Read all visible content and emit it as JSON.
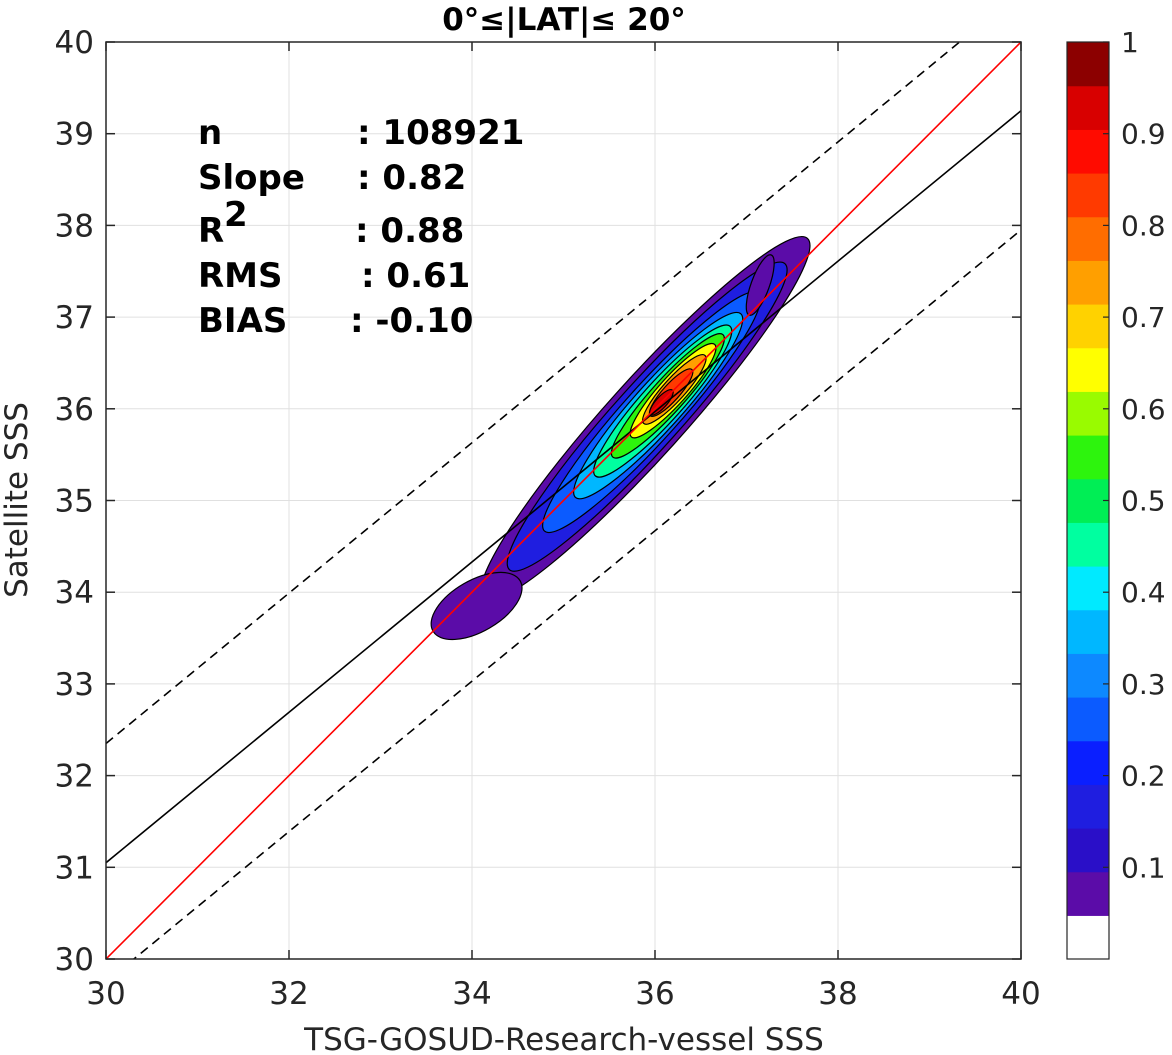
{
  "chart_data": {
    "type": "contour",
    "title": "0°≤|LAT|≤ 20°",
    "xlabel": "TSG-GOSUD-Research-vessel SSS",
    "ylabel": "Satellite SSS",
    "xlim": [
      30,
      40
    ],
    "ylim": [
      30,
      40
    ],
    "xticks": [
      "30",
      "32",
      "34",
      "36",
      "38",
      "40"
    ],
    "yticks": [
      "30",
      "31",
      "32",
      "33",
      "34",
      "35",
      "36",
      "37",
      "38",
      "39",
      "40"
    ],
    "grid": true,
    "stats": [
      {
        "label": "n",
        "value": ": 108921"
      },
      {
        "label": "Slope",
        "value": ": 0.82"
      },
      {
        "label": "R",
        "sup": "2",
        "value": ": 0.88"
      },
      {
        "label": "RMS",
        "value": ": 0.61"
      },
      {
        "label": "BIAS",
        "value": ": -0.10"
      }
    ],
    "lines": {
      "one_to_one": {
        "slope": 1.0,
        "intercept": 0.0,
        "color": "#ff0000",
        "style": "solid"
      },
      "fit": {
        "slope": 0.82,
        "intercept": 6.45,
        "color": "#000000",
        "style": "solid"
      },
      "fit_upper": {
        "slope": 0.82,
        "intercept": 7.75,
        "color": "#000000",
        "style": "dashed"
      },
      "fit_lower": {
        "slope": 0.82,
        "intercept": 5.15,
        "color": "#000000",
        "style": "dashed"
      }
    },
    "density_peak": {
      "x": 36.07,
      "y": 36.07
    },
    "density_levels": [
      0.05,
      0.1,
      0.2,
      0.3,
      0.4,
      0.5,
      0.6,
      0.7,
      0.8,
      0.9
    ],
    "colorbar": {
      "ticks": [
        "1",
        "0.9",
        "0.8",
        "0.7",
        "0.6",
        "0.5",
        "0.4",
        "0.3",
        "0.2",
        "0.1"
      ],
      "range": [
        0,
        1
      ],
      "colors": [
        "#ffffff",
        "#5b0ca8",
        "#2a0fc8",
        "#1f1ee0",
        "#0a1fff",
        "#0b5bff",
        "#0d89ff",
        "#00b7ff",
        "#00eaff",
        "#00ffa0",
        "#00ee55",
        "#2df40d",
        "#99fb00",
        "#ffff00",
        "#ffd200",
        "#ff9f00",
        "#ff6d00",
        "#ff3a00",
        "#ff0b00",
        "#d80000",
        "#8c0000"
      ]
    }
  }
}
